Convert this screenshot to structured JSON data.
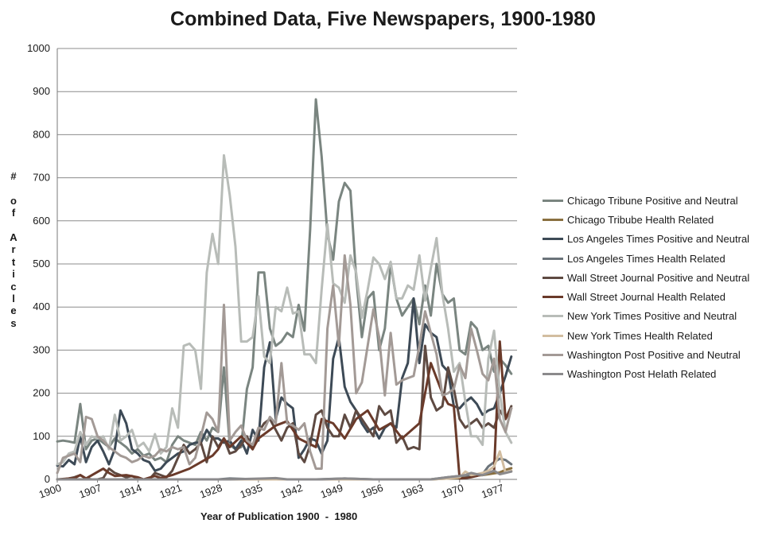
{
  "chart_data": {
    "type": "line",
    "title": "Combined Data, Five Newspapers, 1900-1980",
    "xlabel": "Year of Publication 1900  -  1980",
    "ylabel": "# of Articles",
    "xlim": [
      1900,
      1980
    ],
    "ylim": [
      0,
      1000
    ],
    "x_ticks": [
      "1900",
      "1907",
      "1914",
      "1921",
      "1928",
      "1935",
      "1942",
      "1949",
      "1956",
      "1963",
      "1970",
      "1977"
    ],
    "y_ticks": [
      "0",
      "100",
      "200",
      "300",
      "400",
      "500",
      "600",
      "700",
      "800",
      "900",
      "1000"
    ],
    "grid": "horizontal",
    "legend_position": "right",
    "series": [
      {
        "name": "Chicago Tribune Positive and Neutral",
        "color": "#7a8580",
        "x": [
          1900,
          1901,
          1902,
          1903,
          1904,
          1905,
          1906,
          1907,
          1908,
          1909,
          1910,
          1911,
          1912,
          1913,
          1914,
          1915,
          1916,
          1917,
          1918,
          1919,
          1920,
          1921,
          1922,
          1923,
          1924,
          1925,
          1926,
          1927,
          1928,
          1929,
          1930,
          1931,
          1932,
          1933,
          1934,
          1935,
          1936,
          1937,
          1938,
          1939,
          1940,
          1941,
          1942,
          1943,
          1944,
          1945,
          1946,
          1947,
          1948,
          1949,
          1950,
          1951,
          1952,
          1953,
          1954,
          1955,
          1956,
          1957,
          1958,
          1959,
          1960,
          1961,
          1962,
          1963,
          1964,
          1965,
          1966,
          1967,
          1968,
          1969,
          1970,
          1971,
          1972,
          1973,
          1974,
          1975,
          1976,
          1977,
          1978,
          1979
        ],
        "values": [
          88,
          90,
          88,
          85,
          175,
          70,
          90,
          95,
          85,
          75,
          95,
          85,
          75,
          60,
          70,
          55,
          60,
          45,
          50,
          40,
          80,
          100,
          90,
          85,
          80,
          110,
          90,
          120,
          110,
          260,
          80,
          70,
          75,
          210,
          260,
          480,
          480,
          350,
          310,
          320,
          340,
          330,
          405,
          345,
          580,
          882,
          750,
          570,
          510,
          645,
          688,
          670,
          470,
          330,
          420,
          435,
          300,
          350,
          500,
          420,
          380,
          400,
          420,
          360,
          450,
          380,
          500,
          430,
          410,
          420,
          300,
          290,
          365,
          350,
          300,
          310,
          250,
          280,
          265,
          245
        ]
      },
      {
        "name": "Chicago Tribube Health Related",
        "color": "#8a7040",
        "x": [
          1900,
          1905,
          1910,
          1915,
          1920,
          1925,
          1930,
          1935,
          1940,
          1945,
          1950,
          1955,
          1960,
          1965,
          1968,
          1970,
          1972,
          1974,
          1976,
          1977,
          1978,
          1979
        ],
        "values": [
          0,
          0,
          0,
          0,
          0,
          0,
          0,
          0,
          0,
          0,
          0,
          0,
          0,
          0,
          2,
          3,
          8,
          10,
          14,
          16,
          22,
          26
        ]
      },
      {
        "name": "Los Angeles Times Positive and Neutral",
        "color": "#3d4a56",
        "x": [
          1900,
          1901,
          1902,
          1903,
          1904,
          1905,
          1906,
          1907,
          1908,
          1909,
          1910,
          1911,
          1912,
          1913,
          1914,
          1915,
          1916,
          1917,
          1918,
          1919,
          1920,
          1921,
          1922,
          1923,
          1924,
          1925,
          1926,
          1927,
          1928,
          1929,
          1930,
          1931,
          1932,
          1933,
          1934,
          1935,
          1936,
          1937,
          1938,
          1939,
          1940,
          1941,
          1942,
          1943,
          1944,
          1945,
          1946,
          1947,
          1948,
          1949,
          1950,
          1951,
          1952,
          1953,
          1954,
          1955,
          1956,
          1957,
          1958,
          1959,
          1960,
          1961,
          1962,
          1963,
          1964,
          1965,
          1966,
          1967,
          1968,
          1969,
          1970,
          1971,
          1972,
          1973,
          1974,
          1975,
          1976,
          1977,
          1978,
          1979
        ],
        "values": [
          32,
          30,
          45,
          35,
          100,
          40,
          75,
          90,
          65,
          35,
          70,
          160,
          130,
          70,
          60,
          45,
          40,
          20,
          25,
          40,
          50,
          60,
          65,
          80,
          85,
          85,
          115,
          95,
          95,
          85,
          90,
          70,
          90,
          60,
          115,
          90,
          260,
          318,
          140,
          190,
          175,
          165,
          50,
          70,
          95,
          90,
          60,
          90,
          280,
          330,
          215,
          180,
          160,
          130,
          110,
          120,
          95,
          120,
          130,
          120,
          235,
          270,
          420,
          270,
          360,
          340,
          330,
          265,
          250,
          170,
          165,
          180,
          190,
          175,
          150,
          160,
          165,
          200,
          240,
          285
        ]
      },
      {
        "name": "Los Angeles Times Health Related",
        "color": "#6b737a",
        "x": [
          1900,
          1910,
          1920,
          1928,
          1930,
          1935,
          1940,
          1945,
          1950,
          1955,
          1960,
          1965,
          1968,
          1970,
          1972,
          1974,
          1975,
          1976,
          1977,
          1978,
          1979
        ],
        "values": [
          0,
          0,
          0,
          0,
          2,
          0,
          0,
          0,
          2,
          0,
          0,
          0,
          5,
          8,
          10,
          12,
          30,
          40,
          48,
          45,
          35
        ]
      },
      {
        "name": "Wall Street Journal Positive and Neutral",
        "color": "#5e4a42",
        "x": [
          1900,
          1901,
          1902,
          1903,
          1904,
          1905,
          1906,
          1907,
          1908,
          1909,
          1910,
          1911,
          1912,
          1913,
          1914,
          1915,
          1916,
          1917,
          1918,
          1919,
          1920,
          1921,
          1922,
          1923,
          1924,
          1925,
          1926,
          1927,
          1928,
          1929,
          1930,
          1931,
          1932,
          1933,
          1934,
          1935,
          1936,
          1937,
          1938,
          1939,
          1940,
          1941,
          1942,
          1943,
          1944,
          1945,
          1946,
          1947,
          1948,
          1949,
          1950,
          1951,
          1952,
          1953,
          1954,
          1955,
          1956,
          1957,
          1958,
          1959,
          1960,
          1961,
          1962,
          1963,
          1964,
          1965,
          1966,
          1967,
          1968,
          1969,
          1970,
          1971,
          1972,
          1973,
          1974,
          1975,
          1976,
          1977,
          1978,
          1979
        ],
        "values": [
          0,
          0,
          2,
          5,
          10,
          2,
          0,
          0,
          3,
          25,
          15,
          10,
          5,
          8,
          2,
          0,
          0,
          15,
          10,
          5,
          20,
          50,
          80,
          60,
          70,
          85,
          40,
          100,
          75,
          95,
          60,
          65,
          80,
          100,
          70,
          110,
          130,
          140,
          115,
          90,
          120,
          130,
          60,
          40,
          80,
          150,
          160,
          120,
          100,
          100,
          150,
          120,
          160,
          140,
          120,
          100,
          170,
          150,
          160,
          85,
          100,
          70,
          75,
          70,
          310,
          190,
          160,
          170,
          260,
          210,
          140,
          120,
          130,
          140,
          120,
          130,
          120,
          160,
          140,
          170
        ]
      },
      {
        "name": "Wall Street Journal Health Related",
        "color": "#6a3a2a",
        "x": [
          1900,
          1903,
          1904,
          1905,
          1908,
          1909,
          1910,
          1912,
          1914,
          1915,
          1917,
          1918,
          1920,
          1923,
          1925,
          1927,
          1928,
          1929,
          1930,
          1932,
          1934,
          1935,
          1938,
          1940,
          1942,
          1945,
          1946,
          1948,
          1950,
          1952,
          1954,
          1956,
          1958,
          1960,
          1963,
          1965,
          1967,
          1968,
          1969,
          1970,
          1971,
          1972,
          1973,
          1974,
          1975,
          1976,
          1977,
          1978,
          1979
        ],
        "values": [
          0,
          3,
          10,
          2,
          25,
          15,
          8,
          10,
          5,
          0,
          8,
          3,
          10,
          25,
          40,
          55,
          70,
          95,
          75,
          100,
          70,
          95,
          125,
          135,
          95,
          75,
          140,
          130,
          95,
          140,
          160,
          115,
          130,
          95,
          130,
          270,
          200,
          175,
          170,
          2,
          3,
          5,
          8,
          12,
          15,
          20,
          320,
          140,
          165
        ]
      },
      {
        "name": "New York Times Positive and Neutral",
        "color": "#b8bcb8",
        "x": [
          1900,
          1901,
          1902,
          1903,
          1904,
          1905,
          1906,
          1907,
          1908,
          1909,
          1910,
          1911,
          1912,
          1913,
          1914,
          1915,
          1916,
          1917,
          1918,
          1919,
          1920,
          1921,
          1922,
          1923,
          1924,
          1925,
          1926,
          1927,
          1928,
          1929,
          1930,
          1931,
          1932,
          1933,
          1934,
          1935,
          1936,
          1937,
          1938,
          1939,
          1940,
          1941,
          1942,
          1943,
          1944,
          1945,
          1946,
          1947,
          1948,
          1949,
          1950,
          1951,
          1952,
          1953,
          1954,
          1955,
          1956,
          1957,
          1958,
          1959,
          1960,
          1961,
          1962,
          1963,
          1964,
          1965,
          1966,
          1967,
          1968,
          1969,
          1970,
          1971,
          1972,
          1973,
          1974,
          1975,
          1976,
          1977,
          1978,
          1979
        ],
        "values": [
          35,
          40,
          60,
          65,
          110,
          80,
          100,
          95,
          100,
          70,
          150,
          90,
          100,
          115,
          75,
          85,
          65,
          105,
          60,
          75,
          165,
          120,
          310,
          315,
          300,
          210,
          480,
          570,
          500,
          752,
          660,
          540,
          320,
          320,
          330,
          425,
          285,
          270,
          400,
          390,
          445,
          385,
          390,
          290,
          290,
          270,
          440,
          592,
          455,
          445,
          410,
          520,
          480,
          375,
          440,
          515,
          500,
          465,
          505,
          420,
          420,
          450,
          440,
          520,
          415,
          490,
          560,
          430,
          350,
          250,
          270,
          180,
          100,
          100,
          80,
          280,
          345,
          200,
          110,
          85
        ]
      },
      {
        "name": "New York Times Health Related",
        "color": "#d2bda0",
        "x": [
          1900,
          1910,
          1920,
          1930,
          1940,
          1950,
          1960,
          1965,
          1968,
          1970,
          1971,
          1972,
          1973,
          1974,
          1975,
          1976,
          1977,
          1978,
          1979
        ],
        "values": [
          0,
          0,
          0,
          0,
          0,
          0,
          0,
          0,
          2,
          5,
          18,
          10,
          12,
          15,
          20,
          30,
          65,
          15,
          20
        ]
      },
      {
        "name": "Washington Post Positive and Neutral",
        "color": "#a39a96",
        "x": [
          1900,
          1901,
          1902,
          1903,
          1904,
          1905,
          1906,
          1907,
          1908,
          1909,
          1910,
          1911,
          1912,
          1913,
          1914,
          1915,
          1916,
          1917,
          1918,
          1919,
          1920,
          1921,
          1922,
          1923,
          1924,
          1925,
          1926,
          1927,
          1928,
          1929,
          1930,
          1931,
          1932,
          1933,
          1934,
          1935,
          1936,
          1937,
          1938,
          1939,
          1940,
          1941,
          1942,
          1943,
          1944,
          1945,
          1946,
          1947,
          1948,
          1949,
          1950,
          1951,
          1952,
          1953,
          1954,
          1955,
          1956,
          1957,
          1958,
          1959,
          1960,
          1961,
          1962,
          1963,
          1964,
          1965,
          1966,
          1967,
          1968,
          1969,
          1970,
          1971,
          1972,
          1973,
          1974,
          1975,
          1976,
          1977,
          1978,
          1979
        ],
        "values": [
          15,
          50,
          55,
          60,
          40,
          145,
          140,
          100,
          90,
          75,
          65,
          55,
          50,
          40,
          45,
          55,
          50,
          55,
          70,
          65,
          75,
          70,
          75,
          35,
          50,
          100,
          155,
          140,
          110,
          405,
          90,
          110,
          125,
          90,
          80,
          120,
          115,
          145,
          130,
          270,
          130,
          125,
          115,
          130,
          65,
          25,
          25,
          350,
          450,
          310,
          520,
          405,
          200,
          225,
          310,
          395,
          330,
          195,
          340,
          220,
          230,
          235,
          240,
          310,
          390,
          340,
          290,
          195,
          200,
          210,
          265,
          235,
          350,
          300,
          245,
          230,
          280,
          140,
          110,
          165
        ]
      },
      {
        "name": "Washington Post Helath Related",
        "color": "#8b8a8c",
        "x": [
          1900,
          1910,
          1920,
          1930,
          1936,
          1938,
          1940,
          1946,
          1950,
          1955,
          1960,
          1965,
          1968,
          1970,
          1971,
          1972,
          1973,
          1974,
          1975,
          1976,
          1977,
          1978,
          1979
        ],
        "values": [
          0,
          0,
          0,
          0,
          2,
          3,
          0,
          0,
          2,
          0,
          0,
          0,
          5,
          8,
          10,
          15,
          12,
          10,
          15,
          20,
          12,
          15,
          18
        ]
      }
    ]
  }
}
